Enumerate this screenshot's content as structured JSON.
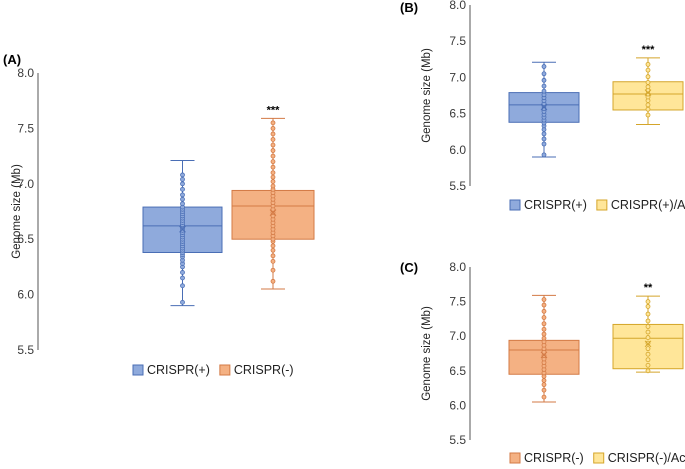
{
  "figure": {
    "panels": [
      "(A)",
      "(B)",
      "(C)"
    ]
  },
  "chart_data": [
    {
      "type": "box",
      "panel_label": "(A)",
      "ylabel": "Genome size (Mb)",
      "ylim": [
        5.5,
        8.0
      ],
      "yticks": [
        "5.5",
        "6.0",
        "6.5",
        "7.0",
        "7.5",
        "8.0"
      ],
      "significance": "***",
      "legend": [
        "CRISPR(+)",
        "CRISPR(-)"
      ],
      "series": [
        {
          "name": "CRISPR(+)",
          "color": "#8faadc",
          "edge": "#4a6eb5",
          "min": 5.9,
          "q1": 6.38,
          "median": 6.62,
          "q3": 6.79,
          "max": 7.21,
          "mean": 6.59,
          "points": [
            5.93,
            6.08,
            6.15,
            6.2,
            6.25,
            6.28,
            6.31,
            6.34,
            6.36,
            6.38,
            6.4,
            6.42,
            6.44,
            6.46,
            6.48,
            6.5,
            6.52,
            6.54,
            6.56,
            6.58,
            6.6,
            6.62,
            6.63,
            6.65,
            6.67,
            6.69,
            6.71,
            6.73,
            6.75,
            6.77,
            6.79,
            6.82,
            6.86,
            6.9,
            6.95,
            7.0,
            7.04,
            7.08
          ]
        },
        {
          "name": "CRISPR(-)",
          "color": "#f4b183",
          "edge": "#d37a45",
          "min": 6.05,
          "q1": 6.5,
          "median": 6.8,
          "q3": 6.94,
          "max": 7.59,
          "mean": 6.74,
          "points": [
            6.12,
            6.22,
            6.3,
            6.35,
            6.4,
            6.44,
            6.48,
            6.5,
            6.53,
            6.56,
            6.59,
            6.62,
            6.65,
            6.68,
            6.71,
            6.74,
            6.77,
            6.8,
            6.83,
            6.86,
            6.89,
            6.92,
            6.95,
            6.98,
            7.02,
            7.06,
            7.1,
            7.15,
            7.2,
            7.25,
            7.3,
            7.35,
            7.4,
            7.45,
            7.5,
            7.55
          ]
        }
      ]
    },
    {
      "type": "box",
      "panel_label": "(B)",
      "ylabel": "Genome size (Mb)",
      "ylim": [
        5.5,
        8.0
      ],
      "yticks": [
        "5.5",
        "6.0",
        "6.5",
        "7.0",
        "7.5",
        "8.0"
      ],
      "significance": "***",
      "legend": [
        "CRISPR(+)",
        "CRISPR(+)/Acr"
      ],
      "series": [
        {
          "name": "CRISPR(+)",
          "color": "#8faadc",
          "edge": "#4a6eb5",
          "min": 5.9,
          "q1": 6.38,
          "median": 6.62,
          "q3": 6.79,
          "max": 7.21,
          "mean": 6.59,
          "points": [
            5.93,
            6.08,
            6.15,
            6.22,
            6.28,
            6.33,
            6.37,
            6.41,
            6.45,
            6.49,
            6.53,
            6.57,
            6.61,
            6.64,
            6.68,
            6.72,
            6.76,
            6.81,
            6.88,
            6.96,
            7.05,
            7.15
          ]
        },
        {
          "name": "CRISPR(+)/Acr",
          "color": "#ffe699",
          "edge": "#d4a52a",
          "min": 6.35,
          "q1": 6.55,
          "median": 6.77,
          "q3": 6.94,
          "max": 7.27,
          "mean": 6.79,
          "points": [
            6.48,
            6.56,
            6.62,
            6.68,
            6.73,
            6.77,
            6.82,
            6.87,
            6.93,
            7.01,
            7.1,
            7.18
          ]
        }
      ]
    },
    {
      "type": "box",
      "panel_label": "(C)",
      "ylabel": "Genome size (Mb)",
      "ylim": [
        5.5,
        8.0
      ],
      "yticks": [
        "5.5",
        "6.0",
        "6.5",
        "7.0",
        "7.5",
        "8.0"
      ],
      "significance": "**",
      "legend": [
        "CRISPR(-)",
        "CRISPR(-)/Acr"
      ],
      "series": [
        {
          "name": "CRISPR(-)",
          "color": "#f4b183",
          "edge": "#d37a45",
          "min": 6.05,
          "q1": 6.45,
          "median": 6.8,
          "q3": 6.94,
          "max": 7.59,
          "mean": 6.73,
          "points": [
            6.12,
            6.22,
            6.3,
            6.36,
            6.42,
            6.47,
            6.52,
            6.57,
            6.62,
            6.67,
            6.72,
            6.77,
            6.82,
            6.87,
            6.92,
            6.97,
            7.03,
            7.1,
            7.18,
            7.27,
            7.36,
            7.45,
            7.53
          ]
        },
        {
          "name": "CRISPR(-)/Acr",
          "color": "#ffe699",
          "edge": "#d4a52a",
          "min": 6.48,
          "q1": 6.53,
          "median": 6.97,
          "q3": 7.17,
          "max": 7.58,
          "mean": 6.89,
          "points": [
            6.5,
            6.58,
            6.66,
            6.74,
            6.82,
            6.9,
            6.98,
            7.06,
            7.14,
            7.22,
            7.32,
            7.43,
            7.5
          ]
        }
      ]
    }
  ]
}
